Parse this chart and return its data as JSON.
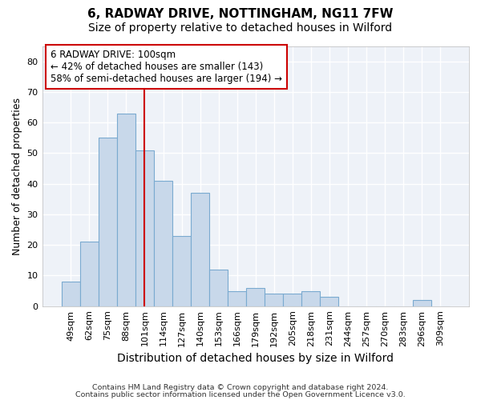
{
  "title1": "6, RADWAY DRIVE, NOTTINGHAM, NG11 7FW",
  "title2": "Size of property relative to detached houses in Wilford",
  "xlabel": "Distribution of detached houses by size in Wilford",
  "ylabel": "Number of detached properties",
  "bar_labels": [
    "49sqm",
    "62sqm",
    "75sqm",
    "88sqm",
    "101sqm",
    "114sqm",
    "127sqm",
    "140sqm",
    "153sqm",
    "166sqm",
    "179sqm",
    "192sqm",
    "205sqm",
    "218sqm",
    "231sqm",
    "244sqm",
    "257sqm",
    "270sqm",
    "283sqm",
    "296sqm",
    "309sqm"
  ],
  "bar_heights": [
    8,
    21,
    55,
    63,
    51,
    41,
    23,
    37,
    12,
    5,
    6,
    4,
    4,
    5,
    3,
    0,
    0,
    0,
    0,
    2,
    0
  ],
  "bar_color": "#c8d8ea",
  "bar_edge_color": "#7aaad0",
  "vline_x": 4,
  "vline_color": "#cc0000",
  "ylim": [
    0,
    85
  ],
  "yticks": [
    0,
    10,
    20,
    30,
    40,
    50,
    60,
    70,
    80
  ],
  "annotation_line1": "6 RADWAY DRIVE: 100sqm",
  "annotation_line2": "← 42% of detached houses are smaller (143)",
  "annotation_line3": "58% of semi-detached houses are larger (194) →",
  "annotation_box_color": "#ffffff",
  "annotation_box_edge": "#cc0000",
  "footer1": "Contains HM Land Registry data © Crown copyright and database right 2024.",
  "footer2": "Contains public sector information licensed under the Open Government Licence v3.0.",
  "background_color": "#ffffff",
  "plot_bg_color": "#eef2f8",
  "grid_color": "#ffffff",
  "title_fontsize": 11,
  "subtitle_fontsize": 10,
  "tick_fontsize": 8,
  "ylabel_fontsize": 9,
  "xlabel_fontsize": 10,
  "annotation_fontsize": 8.5,
  "footer_fontsize": 6.8
}
